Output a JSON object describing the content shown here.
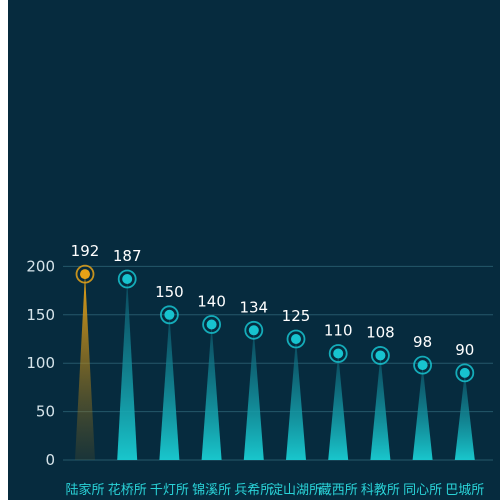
{
  "chart_data": {
    "type": "bar",
    "categories": [
      "陆家所",
      "花桥所",
      "千灯所",
      "锦溪所",
      "兵希所",
      "淀山湖所",
      "藏西所",
      "科教所",
      "同心所",
      "巴城所"
    ],
    "values": [
      192,
      187,
      150,
      140,
      134,
      125,
      110,
      108,
      98,
      90
    ],
    "ylim": [
      0,
      220
    ],
    "yticks": [
      0,
      50,
      100,
      150,
      200
    ],
    "grid": true,
    "colors": {
      "background": "#062b3e",
      "highlight": "#e8a317",
      "bar": "#19c6cc",
      "marker": "#17c3cf",
      "grid": "#25586a"
    }
  }
}
